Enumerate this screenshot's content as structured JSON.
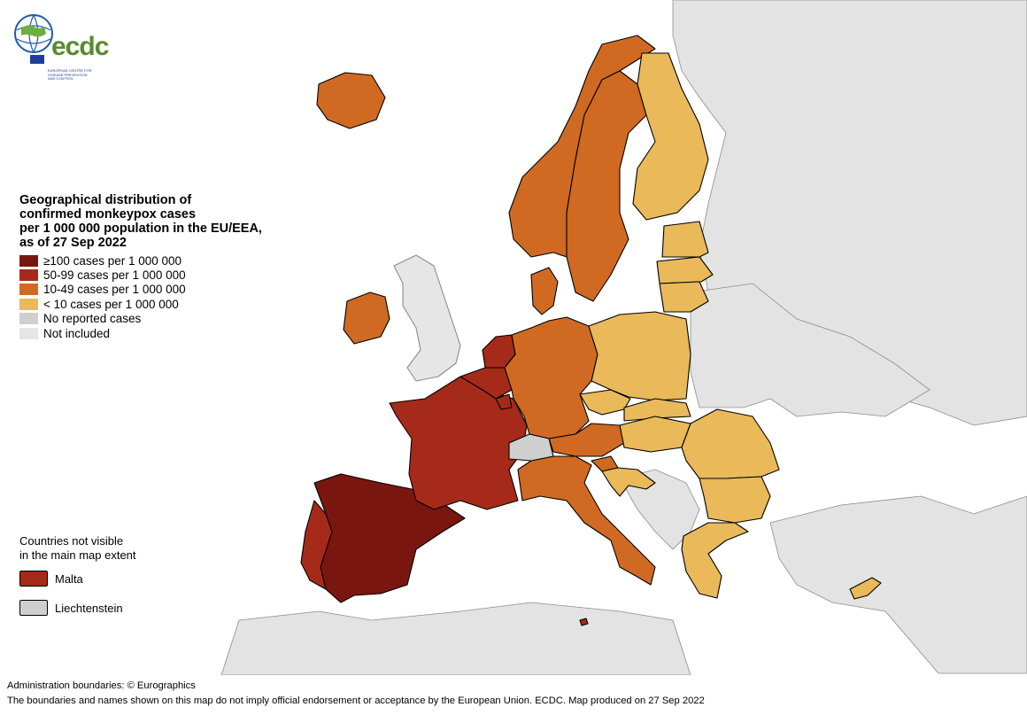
{
  "colors": {
    "sea": "#ffffff",
    "border": "#000000",
    "cat_100_plus": "#7a1610",
    "cat_50_99": "#a52a1a",
    "cat_10_49": "#d06a22",
    "cat_lt_10": "#e9b95a",
    "no_reported": "#cfcfcf",
    "not_included": "#e6e6e6",
    "outside_eu": "#e3e3e3"
  },
  "logo": {
    "wordmark": "ecdc",
    "subtitle": "EUROPEAN CENTRE FOR\nDISEASE PREVENTION\nAND CONTROL"
  },
  "legend": {
    "title": "Geographical distribution of\nconfirmed monkeypox cases\nper 1 000 000 population in the EU/EEA,\nas of 27 Sep 2022",
    "items": [
      {
        "label": "≥100 cases per 1 000 000",
        "color": "#7a1610"
      },
      {
        "label": "50-99 cases per 1 000 000",
        "color": "#a52a1a"
      },
      {
        "label": "10-49 cases per 1 000 000",
        "color": "#d06a22"
      },
      {
        "label": "< 10 cases per 1 000 000",
        "color": "#e9b95a"
      },
      {
        "label": "No reported cases",
        "color": "#cfcfcf"
      },
      {
        "label": "Not included",
        "color": "#e6e6e6"
      }
    ]
  },
  "not_visible": {
    "title": "Countries not visible\nin the main map extent",
    "items": [
      {
        "label": "Malta",
        "color": "#a52a1a"
      },
      {
        "label": "Liechtenstein",
        "color": "#cfcfcf"
      }
    ]
  },
  "footer": {
    "line1": "Administration boundaries: © Eurographics",
    "line2": "The boundaries and names shown on this map do not imply official endorsement or acceptance by the European Union. ECDC. Map produced on 27 Sep 2022"
  },
  "map_regions": [
    {
      "name": "Spain",
      "category": "≥100 cases per 1 000 000"
    },
    {
      "name": "Portugal",
      "category": "50-99 cases per 1 000 000"
    },
    {
      "name": "France",
      "category": "50-99 cases per 1 000 000"
    },
    {
      "name": "Netherlands",
      "category": "50-99 cases per 1 000 000"
    },
    {
      "name": "Belgium",
      "category": "50-99 cases per 1 000 000"
    },
    {
      "name": "Luxembourg",
      "category": "50-99 cases per 1 000 000"
    },
    {
      "name": "Germany",
      "category": "10-49 cases per 1 000 000"
    },
    {
      "name": "Austria",
      "category": "10-49 cases per 1 000 000"
    },
    {
      "name": "Italy",
      "category": "10-49 cases per 1 000 000"
    },
    {
      "name": "Ireland",
      "category": "10-49 cases per 1 000 000"
    },
    {
      "name": "Iceland",
      "category": "10-49 cases per 1 000 000"
    },
    {
      "name": "Norway",
      "category": "10-49 cases per 1 000 000"
    },
    {
      "name": "Sweden",
      "category": "10-49 cases per 1 000 000"
    },
    {
      "name": "Denmark",
      "category": "10-49 cases per 1 000 000"
    },
    {
      "name": "Slovenia",
      "category": "10-49 cases per 1 000 000"
    },
    {
      "name": "Malta",
      "category": "50-99 cases per 1 000 000"
    },
    {
      "name": "Finland",
      "category": "< 10 cases per 1 000 000"
    },
    {
      "name": "Estonia",
      "category": "< 10 cases per 1 000 000"
    },
    {
      "name": "Latvia",
      "category": "< 10 cases per 1 000 000"
    },
    {
      "name": "Lithuania",
      "category": "< 10 cases per 1 000 000"
    },
    {
      "name": "Poland",
      "category": "< 10 cases per 1 000 000"
    },
    {
      "name": "Czechia",
      "category": "< 10 cases per 1 000 000"
    },
    {
      "name": "Slovakia",
      "category": "< 10 cases per 1 000 000"
    },
    {
      "name": "Hungary",
      "category": "< 10 cases per 1 000 000"
    },
    {
      "name": "Romania",
      "category": "< 10 cases per 1 000 000"
    },
    {
      "name": "Bulgaria",
      "category": "< 10 cases per 1 000 000"
    },
    {
      "name": "Greece",
      "category": "< 10 cases per 1 000 000"
    },
    {
      "name": "Croatia",
      "category": "< 10 cases per 1 000 000"
    },
    {
      "name": "Cyprus",
      "category": "< 10 cases per 1 000 000"
    },
    {
      "name": "Switzerland",
      "category": "No reported cases"
    },
    {
      "name": "United Kingdom",
      "category": "Not included"
    }
  ]
}
